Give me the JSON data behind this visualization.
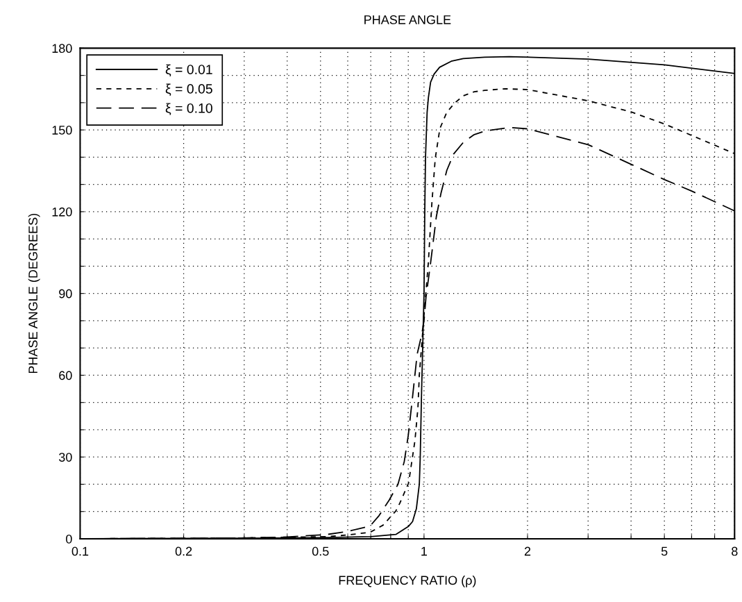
{
  "chart_data": {
    "type": "line",
    "title": "PHASE ANGLE",
    "xlabel": "FREQUENCY RATIO (ρ)",
    "ylabel": "PHASE ANGLE (DEGREES)",
    "log": "x",
    "grid": true,
    "legend": "top left",
    "marker": "none",
    "xlim": [
      0.1,
      8
    ],
    "xticks": [
      0.1,
      0.2,
      {
        "value": 0.3,
        "label": null
      },
      {
        "value": 0.4,
        "label": null
      },
      0.5,
      {
        "value": 0.6,
        "label": null
      },
      {
        "value": 0.7,
        "label": null
      },
      {
        "value": 0.8,
        "label": null
      },
      {
        "value": 0.9,
        "label": null
      },
      1,
      2,
      {
        "value": 3,
        "label": null
      },
      {
        "value": 4,
        "label": null
      },
      5,
      {
        "value": 6,
        "label": null
      },
      {
        "value": 7,
        "label": null
      },
      8
    ],
    "ylim": [
      0,
      180
    ],
    "yticks": [
      0,
      {
        "value": 10,
        "label": null
      },
      {
        "value": 20,
        "label": null
      },
      30,
      {
        "value": 40,
        "label": null
      },
      {
        "value": 50,
        "label": null
      },
      60,
      {
        "value": 70,
        "label": null
      },
      {
        "value": 80,
        "label": null
      },
      90,
      {
        "value": 100,
        "label": null
      },
      {
        "value": 110,
        "label": null
      },
      120,
      {
        "value": 130,
        "label": null
      },
      {
        "value": 140,
        "label": null
      },
      150,
      {
        "value": 160,
        "label": null
      },
      {
        "value": 170,
        "label": null
      },
      180
    ],
    "series": [
      {
        "name": "ξ = 0.01",
        "color": "#000000",
        "line_style": "solid",
        "x": [
          0.1,
          0.3,
          0.5,
          0.7,
          0.828,
          0.9,
          0.926,
          0.95,
          0.969,
          0.975,
          0.983,
          1.0,
          1.005,
          1.01,
          1.021,
          1.03,
          1.045,
          1.07,
          1.11,
          1.2,
          1.3,
          1.5,
          1.77,
          3,
          5,
          8
        ],
        "values": [
          0,
          0.2,
          0.4,
          0.8,
          1.6,
          4.5,
          6.3,
          11,
          20,
          30,
          52,
          90,
          120,
          140,
          156.5,
          162,
          167.5,
          170.5,
          173,
          175.2,
          176.2,
          176.7,
          176.9,
          176,
          173.9,
          170.7
        ]
      },
      {
        "name": "ξ = 0.05",
        "color": "#000000",
        "line_style": "dashed",
        "x": [
          0.1,
          0.294,
          0.523,
          0.6,
          0.697,
          0.76,
          0.828,
          0.85,
          0.902,
          0.941,
          0.96,
          0.969,
          1.0,
          1.029,
          1.053,
          1.078,
          1.112,
          1.165,
          1.229,
          1.3,
          1.4,
          1.5,
          1.72,
          2,
          3,
          4,
          5,
          6,
          8
        ],
        "values": [
          0,
          0.3,
          0.8,
          1.4,
          2.4,
          5,
          10.2,
          13,
          20.5,
          36,
          48,
          60,
          82,
          101,
          122.4,
          139.5,
          150.5,
          156.5,
          159.9,
          162.5,
          164,
          164.5,
          165.1,
          164.8,
          160.7,
          156.6,
          152.2,
          148,
          141.3
        ]
      },
      {
        "name": "ξ = 0.10",
        "color": "#000000",
        "line_style": "dashed",
        "x": [
          0.1,
          0.294,
          0.392,
          0.523,
          0.6,
          0.697,
          0.74,
          0.792,
          0.84,
          0.876,
          0.9,
          0.926,
          0.955,
          0.985,
          1.0,
          1.013,
          1.045,
          1.086,
          1.12,
          1.165,
          1.22,
          1.3,
          1.4,
          1.516,
          1.77,
          2,
          3,
          4,
          5,
          6,
          8
        ],
        "values": [
          0,
          0.3,
          0.6,
          1.6,
          2.7,
          4.7,
          8.5,
          14.2,
          20,
          28.3,
          38,
          52,
          67.7,
          75,
          80,
          88.5,
          101.2,
          118.2,
          126.7,
          135.2,
          141.2,
          145.4,
          148.3,
          149.7,
          150.9,
          150.4,
          144.6,
          137.4,
          131.8,
          127.6,
          120.3
        ]
      }
    ]
  }
}
